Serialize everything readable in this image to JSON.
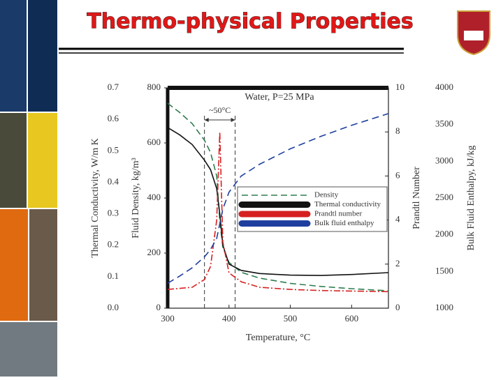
{
  "slide_title": "Thermo-physical Properties",
  "chart_data": {
    "type": "line",
    "title": "Water, P=25 MPa",
    "x_label": "Temperature, °C",
    "x": [
      300,
      320,
      340,
      360,
      370,
      380,
      385,
      390,
      400,
      420,
      450,
      500,
      550,
      600,
      660
    ],
    "xlim": [
      300,
      660
    ],
    "xticks": [
      300,
      400,
      500,
      600
    ],
    "y_label": "Thermal Conductivity, W/m K",
    "ylim": [
      0,
      0.7
    ],
    "yticks": [
      {
        "value": 0,
        "label": "0.0"
      },
      0.1,
      0.2,
      0.3,
      0.4,
      0.5,
      0.6,
      0.7
    ],
    "y2_label": "Fluid Density, kg/m³",
    "y2lim": [
      0,
      800
    ],
    "y2ticks": [
      0,
      200,
      400,
      600,
      800
    ],
    "y3_label": "Prandtl Number",
    "y3lim": [
      0,
      10
    ],
    "y3ticks": [
      0,
      2,
      4,
      6,
      8,
      10
    ],
    "y4_label": "Bulk Fluid Enthalpy, kJ/kg",
    "y4lim": [
      1000,
      4000
    ],
    "y4ticks": [
      1000,
      1500,
      2000,
      2500,
      3000,
      3500,
      4000
    ],
    "series": [
      {
        "name": "Density",
        "color": "#2e7d4f",
        "axis": "y2",
        "values": [
          744,
          710,
          670,
          610,
          565,
          480,
          317,
          220,
          166,
          130,
          109,
          90,
          79,
          71,
          63
        ]
      },
      {
        "name": "Thermal conductivity",
        "color": "#111111",
        "axis": "y",
        "values": [
          0.574,
          0.55,
          0.52,
          0.47,
          0.44,
          0.38,
          0.3,
          0.2,
          0.14,
          0.12,
          0.11,
          0.105,
          0.104,
          0.107,
          0.113
        ]
      },
      {
        "name": "Prandtl number",
        "color": "#d62020",
        "axis": "y3",
        "values": [
          0.85,
          0.9,
          0.95,
          1.3,
          1.9,
          4,
          8,
          3,
          1.6,
          1.2,
          0.95,
          0.85,
          0.8,
          0.78,
          0.75
        ]
      },
      {
        "name": "Bulk fluid enthalpy",
        "color": "#1f3f9f",
        "axis": "y4",
        "values": [
          1340,
          1440,
          1550,
          1700,
          1800,
          1950,
          2150,
          2350,
          2580,
          2800,
          2960,
          3170,
          3340,
          3490,
          3650
        ]
      }
    ],
    "annotation": {
      "text": "~50°C",
      "x": [
        360,
        410
      ]
    }
  }
}
